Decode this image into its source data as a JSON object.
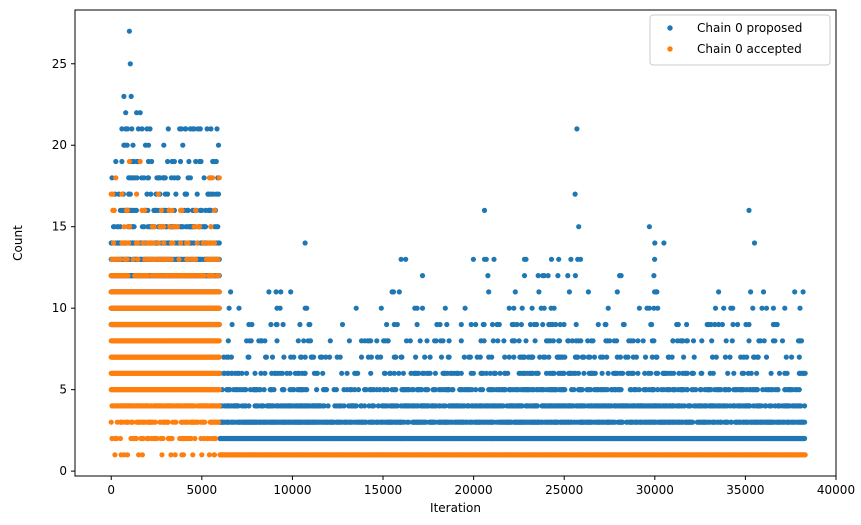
{
  "chart_data": {
    "type": "scatter",
    "xlabel": "Iteration",
    "ylabel": "Count",
    "xlim": [
      -2000,
      40000
    ],
    "ylim": [
      -0.3,
      28.3
    ],
    "xticks": [
      0,
      5000,
      10000,
      15000,
      20000,
      25000,
      30000,
      35000,
      40000
    ],
    "yticks": [
      0,
      5,
      10,
      15,
      20,
      25
    ],
    "legend_position": "top-right",
    "grid": false,
    "colors": {
      "proposed": "#1f77b4",
      "accepted": "#ff7f0e"
    },
    "series": [
      {
        "name": "Chain 0 proposed",
        "color": "#1f77b4",
        "regions": [
          {
            "x": [
              0,
              6000
            ],
            "profile": [
              [
                9,
                1
              ],
              [
                10,
                1
              ],
              [
                11,
                1
              ],
              [
                12,
                1
              ],
              [
                13,
                0.85
              ],
              [
                14,
                0.6
              ],
              [
                15,
                0.45
              ],
              [
                16,
                0.3
              ],
              [
                17,
                0.2
              ],
              [
                18,
                0.15
              ],
              [
                19,
                0.1
              ],
              [
                20,
                0.06
              ],
              [
                21,
                0.05
              ]
            ]
          },
          {
            "x": [
              6000,
              11000
            ],
            "profile": [
              [
                2,
                1
              ],
              [
                3,
                0.85
              ],
              [
                4,
                0.45
              ],
              [
                5,
                0.3
              ],
              [
                6,
                0.2
              ],
              [
                7,
                0.15
              ],
              [
                8,
                0.1
              ],
              [
                9,
                0.08
              ],
              [
                10,
                0.05
              ],
              [
                11,
                0.03
              ]
            ]
          },
          {
            "x": [
              11000,
              16000
            ],
            "profile": [
              [
                2,
                1
              ],
              [
                3,
                0.8
              ],
              [
                4,
                0.4
              ],
              [
                5,
                0.25
              ],
              [
                6,
                0.15
              ],
              [
                7,
                0.1
              ],
              [
                8,
                0.07
              ],
              [
                9,
                0.05
              ],
              [
                10,
                0.03
              ],
              [
                11,
                0.02
              ]
            ]
          },
          {
            "x": [
              16000,
              21000
            ],
            "profile": [
              [
                2,
                1
              ],
              [
                3,
                0.7
              ],
              [
                4,
                0.55
              ],
              [
                5,
                0.35
              ],
              [
                6,
                0.2
              ],
              [
                7,
                0.12
              ],
              [
                8,
                0.08
              ],
              [
                9,
                0.05
              ],
              [
                10,
                0.03
              ],
              [
                11,
                0.02
              ],
              [
                12,
                0.02
              ],
              [
                13,
                0.015
              ]
            ]
          },
          {
            "x": [
              21000,
              26000
            ],
            "profile": [
              [
                2,
                1
              ],
              [
                3,
                0.8
              ],
              [
                4,
                0.6
              ],
              [
                5,
                0.45
              ],
              [
                6,
                0.3
              ],
              [
                7,
                0.22
              ],
              [
                8,
                0.15
              ],
              [
                9,
                0.1
              ],
              [
                10,
                0.07
              ],
              [
                11,
                0.05
              ],
              [
                12,
                0.04
              ],
              [
                13,
                0.02
              ]
            ]
          },
          {
            "x": [
              26000,
              31000
            ],
            "profile": [
              [
                2,
                1
              ],
              [
                3,
                0.8
              ],
              [
                4,
                0.55
              ],
              [
                5,
                0.4
              ],
              [
                6,
                0.25
              ],
              [
                7,
                0.15
              ],
              [
                8,
                0.1
              ],
              [
                9,
                0.07
              ],
              [
                10,
                0.05
              ],
              [
                11,
                0.03
              ],
              [
                12,
                0.02
              ],
              [
                13,
                0.015
              ]
            ]
          },
          {
            "x": [
              31000,
              38300
            ],
            "profile": [
              [
                2,
                1
              ],
              [
                3,
                0.7
              ],
              [
                4,
                0.5
              ],
              [
                5,
                0.35
              ],
              [
                6,
                0.2
              ],
              [
                7,
                0.12
              ],
              [
                8,
                0.08
              ],
              [
                9,
                0.05
              ],
              [
                10,
                0.03
              ],
              [
                11,
                0.02
              ]
            ]
          }
        ],
        "points": [
          [
            1000,
            27
          ],
          [
            1050,
            25
          ],
          [
            700,
            23
          ],
          [
            1100,
            23
          ],
          [
            800,
            22
          ],
          [
            1400,
            22
          ],
          [
            1600,
            22
          ],
          [
            900,
            21
          ],
          [
            1500,
            21
          ],
          [
            1700,
            21
          ],
          [
            5500,
            21
          ],
          [
            25700,
            21
          ],
          [
            700,
            20
          ],
          [
            1200,
            20
          ],
          [
            2900,
            20
          ],
          [
            5600,
            19
          ],
          [
            5800,
            19
          ],
          [
            25600,
            17
          ],
          [
            20600,
            16
          ],
          [
            35200,
            16
          ],
          [
            29700,
            15
          ],
          [
            25800,
            15
          ],
          [
            10700,
            14
          ],
          [
            30000,
            14
          ],
          [
            30500,
            14
          ],
          [
            35500,
            14
          ],
          [
            16000,
            13
          ],
          [
            20600,
            13
          ],
          [
            20700,
            13
          ],
          [
            24300,
            13
          ],
          [
            25900,
            13
          ],
          [
            8700,
            11
          ],
          [
            9100,
            11
          ],
          [
            15500,
            11
          ],
          [
            15900,
            11
          ],
          [
            22300,
            11
          ],
          [
            33800,
            10
          ],
          [
            34300,
            10
          ],
          [
            38000,
            8
          ],
          [
            38300,
            6
          ],
          [
            36800,
            5
          ],
          [
            37600,
            4
          ]
        ]
      },
      {
        "name": "Chain 0 accepted",
        "color": "#ff7f0e",
        "regions": [
          {
            "x": [
              6000,
              38300
            ],
            "profile": [
              [
                1,
                1
              ]
            ]
          },
          {
            "x": [
              0,
              6000
            ],
            "profile": [
              [
                1,
                0.05
              ],
              [
                2,
                0.25
              ],
              [
                3,
                0.55
              ],
              [
                4,
                0.85
              ],
              [
                5,
                1
              ],
              [
                6,
                1
              ],
              [
                7,
                1
              ],
              [
                8,
                1
              ],
              [
                9,
                1
              ],
              [
                10,
                1
              ],
              [
                11,
                0.85
              ],
              [
                12,
                0.55
              ],
              [
                13,
                0.3
              ],
              [
                14,
                0.15
              ],
              [
                15,
                0.08
              ],
              [
                16,
                0.05
              ],
              [
                17,
                0.03
              ],
              [
                18,
                0.02
              ]
            ]
          }
        ],
        "points": [
          [
            1000,
            19
          ],
          [
            1600,
            19
          ],
          [
            1400,
            17
          ],
          [
            1700,
            16
          ],
          [
            900,
            16
          ],
          [
            4800,
            15
          ],
          [
            5500,
            15
          ],
          [
            5700,
            14
          ],
          [
            5900,
            13
          ],
          [
            2900,
            14
          ],
          [
            200,
            1
          ],
          [
            900,
            1
          ],
          [
            2800,
            1
          ],
          [
            3300,
            1
          ],
          [
            3900,
            1
          ],
          [
            4500,
            1
          ],
          [
            5000,
            1
          ],
          [
            5700,
            1
          ]
        ]
      }
    ]
  }
}
